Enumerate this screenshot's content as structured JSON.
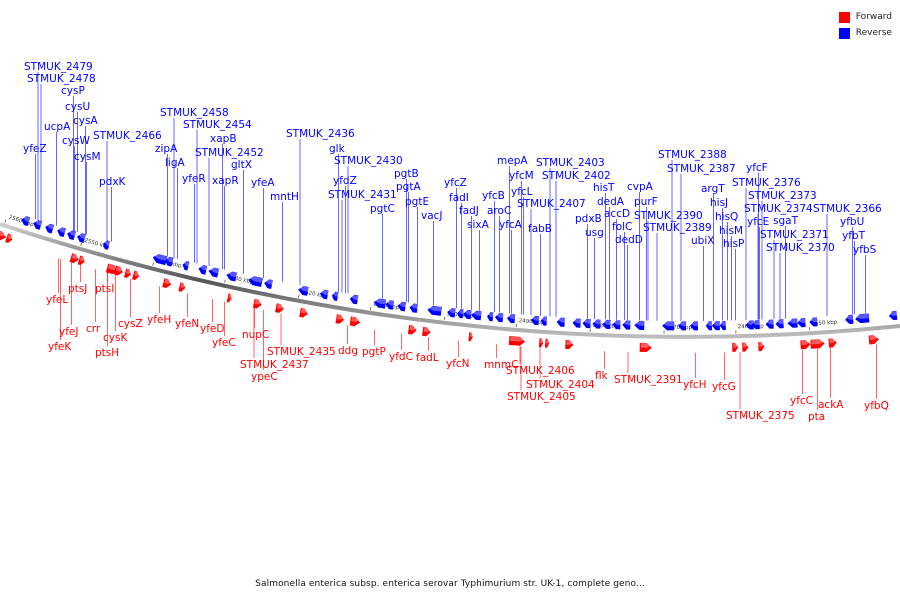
{
  "legend": {
    "forward": {
      "label": "Forward",
      "color": "#ff0000"
    },
    "reverse": {
      "label": "Reverse",
      "color": "#0000ff"
    }
  },
  "caption": "Salmonella enterica subsp. enterica serovar Typhimurium str. UK-1, complete geno...",
  "scale_labels": [
    "2560 kbp",
    "2550 kbp",
    "2540 kbp",
    "2530 kbp",
    "2520 kbp",
    "2510 kbp",
    "2500 kbp",
    "2490 kbp",
    "2480 kbp",
    "2470 kbp",
    "2460 kbp",
    "2450 kbp"
  ],
  "reverse_genes": [
    "STMUK_2479",
    "STMUK_2478",
    "cysP",
    "cysU",
    "ucpA",
    "cysA",
    "yfeZ",
    "cysW",
    "cysM",
    "STMUK_2466",
    "pdxK",
    "STMUK_2458",
    "STMUK_2454",
    "zipA",
    "xapB",
    "ligA",
    "STMUK_2452",
    "gltX",
    "yfeR",
    "xapR",
    "yfeA",
    "mntH",
    "STMUK_2436",
    "glk",
    "STMUK_2430",
    "yfdZ",
    "pgtB",
    "STMUK_2431",
    "pgtA",
    "pgtC",
    "pgtE",
    "yfcZ",
    "vacJ",
    "fadI",
    "fadJ",
    "sixA",
    "mepA",
    "yfcM",
    "yfcL",
    "yfcB",
    "aroC",
    "yfcA",
    "STMUK_2403",
    "STMUK_2402",
    "STMUK_2407",
    "fabB",
    "hisT",
    "dedA",
    "pdxB",
    "accD",
    "usg",
    "folC",
    "dedD",
    "cvpA",
    "purF",
    "STMUK_2388",
    "STMUK_2387",
    "argT",
    "STMUK_2390",
    "STMUK_2389",
    "ubiX",
    "hisJ",
    "hisQ",
    "hisM",
    "hisP",
    "yfcF",
    "STMUK_2376",
    "STMUK_2373",
    "yfcE",
    "STMUK_2374",
    "sgaT",
    "STMUK_2371",
    "STMUK_2370",
    "STMUK_2366",
    "yfbU",
    "yfbT",
    "yfbS"
  ],
  "forward_genes": [
    "yfeL",
    "ptsJ",
    "yfeJ",
    "yfeK",
    "ptsI",
    "crr",
    "cysK",
    "cysZ",
    "ptsH",
    "yfeH",
    "yfeN",
    "yfeD",
    "yfeC",
    "nupC",
    "STMUK_2437",
    "STMUK_2435",
    "ypeC",
    "ddg",
    "pgtP",
    "yfdC",
    "fadL",
    "yfcN",
    "mnmC",
    "STMUK_2406",
    "STMUK_2404",
    "STMUK_2405",
    "flk",
    "STMUK_2391",
    "yfcH",
    "yfcG",
    "STMUK_2375",
    "yfcC",
    "pta",
    "ackA",
    "yfbQ"
  ]
}
